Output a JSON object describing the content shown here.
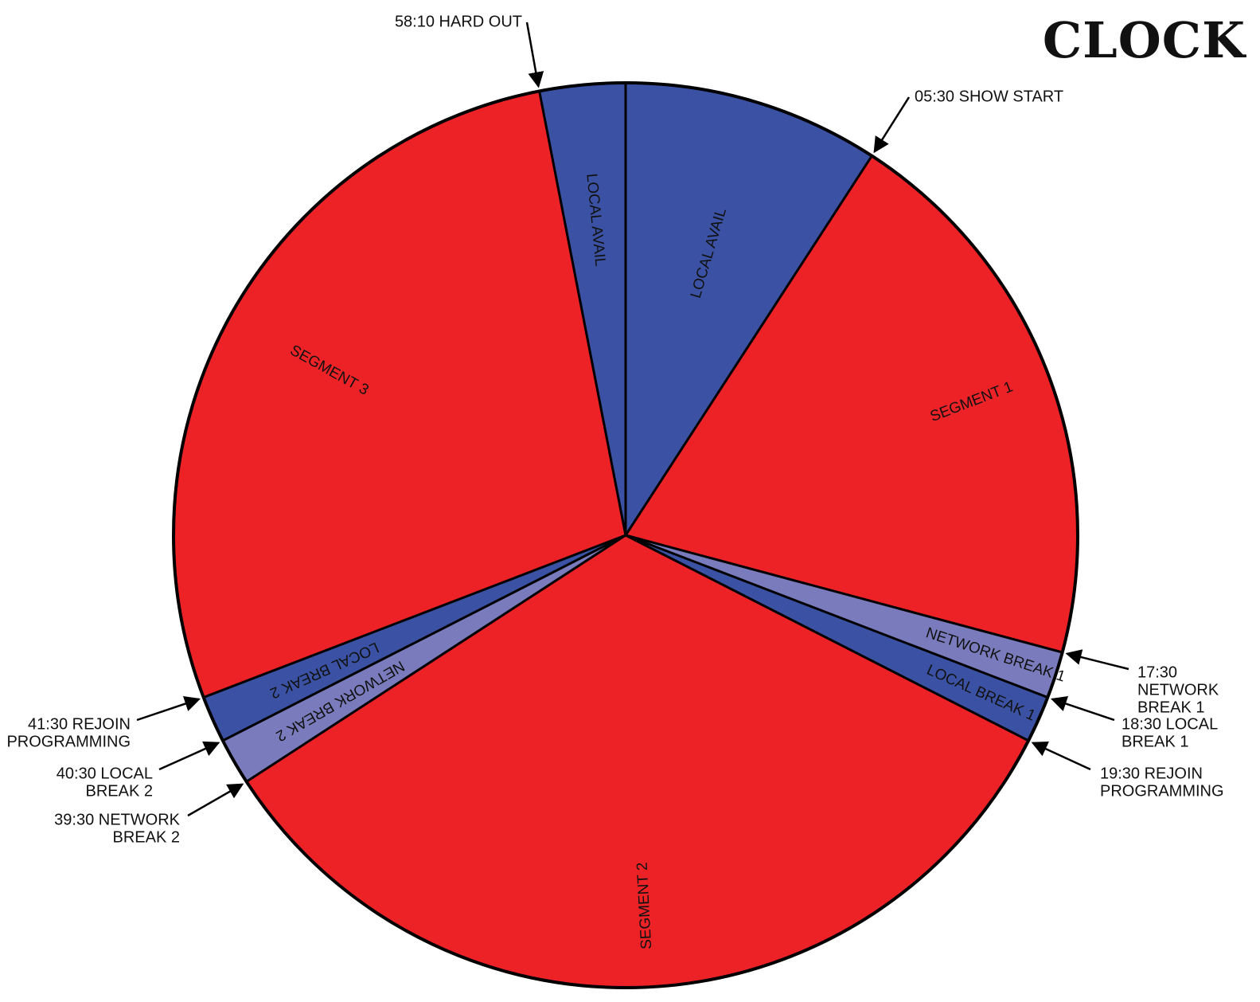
{
  "title": "CLOCK",
  "chart_data": {
    "type": "pie",
    "unit": "minutes",
    "total": 60,
    "slices": [
      {
        "label": "LOCAL AVAIL",
        "start": 0,
        "end": 5.5,
        "color": "#3b52a4"
      },
      {
        "label": "SEGMENT 1",
        "start": 5.5,
        "end": 17.5,
        "color": "#ec2227"
      },
      {
        "label": "NETWORK BREAK 1",
        "start": 17.5,
        "end": 18.5,
        "color": "#7a7bbd"
      },
      {
        "label": "LOCAL BREAK 1",
        "start": 18.5,
        "end": 19.5,
        "color": "#3b52a4"
      },
      {
        "label": "SEGMENT 2",
        "start": 19.5,
        "end": 39.5,
        "color": "#ec2227"
      },
      {
        "label": "NETWORK BREAK 2",
        "start": 39.5,
        "end": 40.5,
        "color": "#7a7bbd"
      },
      {
        "label": "LOCAL BREAK 2",
        "start": 40.5,
        "end": 41.5,
        "color": "#3b52a4"
      },
      {
        "label": "SEGMENT 3",
        "start": 41.5,
        "end": 58.1667,
        "color": "#ec2227"
      },
      {
        "label": "LOCAL AVAIL",
        "start": 58.1667,
        "end": 60,
        "color": "#3b52a4"
      }
    ],
    "markers": [
      {
        "time": 58.1667,
        "lines": [
          "58:10 HARD OUT"
        ]
      },
      {
        "time": 5.5,
        "lines": [
          "05:30 SHOW START"
        ]
      },
      {
        "time": 17.5,
        "lines": [
          "17:30",
          "NETWORK",
          "BREAK 1"
        ]
      },
      {
        "time": 18.5,
        "lines": [
          "18:30 LOCAL",
          "BREAK 1"
        ]
      },
      {
        "time": 19.5,
        "lines": [
          "19:30 REJOIN",
          "PROGRAMMING"
        ]
      },
      {
        "time": 39.5,
        "lines": [
          "39:30 NETWORK",
          "BREAK 2"
        ]
      },
      {
        "time": 40.5,
        "lines": [
          "40:30 LOCAL",
          "BREAK 2"
        ]
      },
      {
        "time": 41.5,
        "lines": [
          "41:30 REJOIN",
          "PROGRAMMING"
        ]
      }
    ]
  }
}
